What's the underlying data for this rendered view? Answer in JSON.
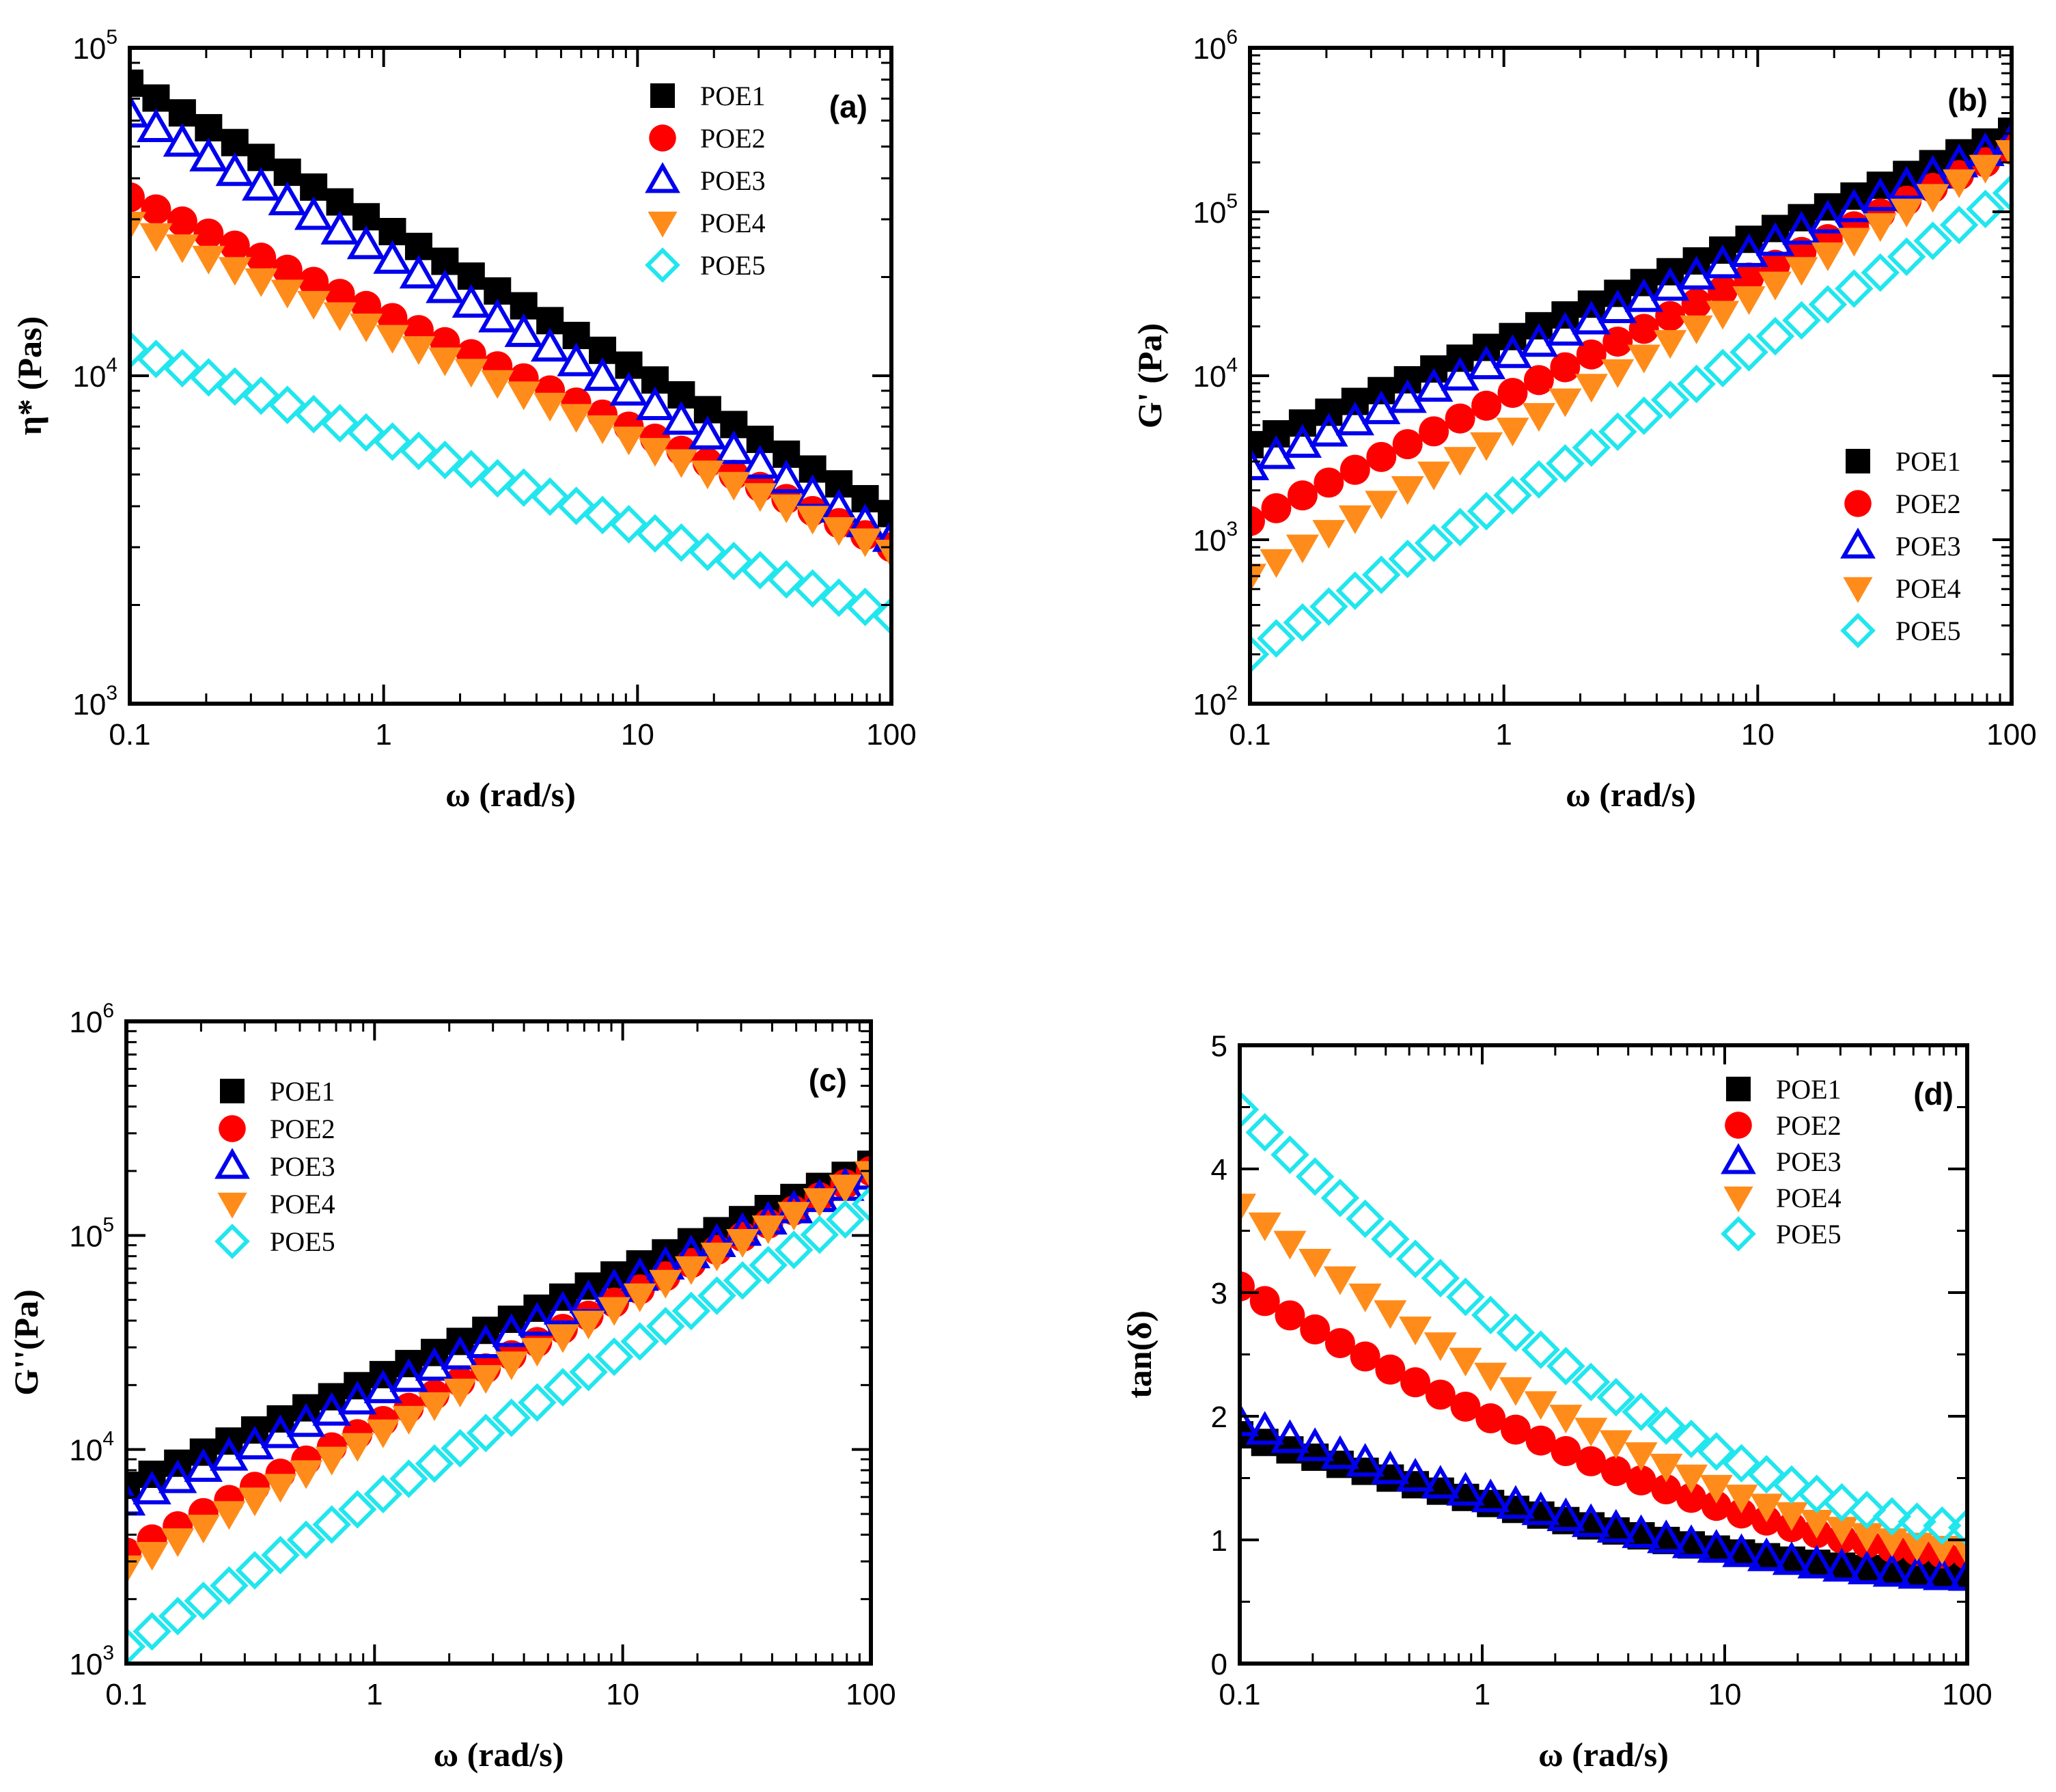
{
  "series_styles": [
    {
      "name": "POE1",
      "marker": "square",
      "filled": true,
      "color": "#000000"
    },
    {
      "name": "POE2",
      "marker": "circle",
      "filled": true,
      "color": "#ff0000"
    },
    {
      "name": "POE3",
      "marker": "triangle-up",
      "filled": false,
      "color": "#0000ee"
    },
    {
      "name": "POE4",
      "marker": "triangle-down",
      "filled": true,
      "color": "#ff8c1a"
    },
    {
      "name": "POE5",
      "marker": "diamond",
      "filled": false,
      "color": "#22e6ee"
    }
  ],
  "chart_data": [
    {
      "id": "a",
      "type": "scatter",
      "panel_label": "(a)",
      "xlabel": "ω (rad/s)",
      "ylabel": "η* (Pas)",
      "xscale": "log",
      "yscale": "log",
      "xlim": [
        0.1,
        100
      ],
      "ylim": [
        1000,
        100000
      ],
      "xticks": [
        "0.1",
        "1",
        "10",
        "100"
      ],
      "yticks": [
        {
          "base": "10",
          "exp": "3"
        },
        {
          "base": "10",
          "exp": "4"
        },
        {
          "base": "10",
          "exp": "5"
        }
      ],
      "legend_position": "top-right",
      "series": [
        {
          "name": "POE1",
          "start": 78000,
          "end": 3800
        },
        {
          "name": "POE2",
          "start": 35000,
          "end": 3000
        },
        {
          "name": "POE3",
          "start": 63000,
          "end": 3200
        },
        {
          "name": "POE4",
          "start": 29000,
          "end": 2900
        },
        {
          "name": "POE5",
          "start": 12000,
          "end": 1850
        }
      ]
    },
    {
      "id": "b",
      "type": "scatter",
      "panel_label": "(b)",
      "xlabel": "ω (rad/s)",
      "ylabel": "G' (Pa)",
      "xscale": "log",
      "yscale": "log",
      "xlim": [
        0.1,
        100
      ],
      "ylim": [
        100,
        1000000
      ],
      "xticks": [
        "0.1",
        "1",
        "10",
        "100"
      ],
      "yticks": [
        {
          "base": "10",
          "exp": "2"
        },
        {
          "base": "10",
          "exp": "3"
        },
        {
          "base": "10",
          "exp": "4"
        },
        {
          "base": "10",
          "exp": "5"
        },
        {
          "base": "10",
          "exp": "6"
        }
      ],
      "legend_position": "center-right",
      "series": [
        {
          "name": "POE1",
          "start": 3800,
          "end": 310000
        },
        {
          "name": "POE2",
          "start": 1300,
          "end": 240000
        },
        {
          "name": "POE3",
          "start": 2800,
          "end": 270000
        },
        {
          "name": "POE4",
          "start": 600,
          "end": 230000
        },
        {
          "name": "POE5",
          "start": 200,
          "end": 130000
        }
      ]
    },
    {
      "id": "c",
      "type": "scatter",
      "panel_label": "(c)",
      "xlabel": "ω (rad/s)",
      "ylabel": "G''(Pa)",
      "xscale": "log",
      "yscale": "log",
      "xlim": [
        0.1,
        100
      ],
      "ylim": [
        1000,
        1000000
      ],
      "xticks": [
        "0.1",
        "1",
        "10",
        "100"
      ],
      "yticks": [
        {
          "base": "10",
          "exp": "3"
        },
        {
          "base": "10",
          "exp": "4"
        },
        {
          "base": "10",
          "exp": "5"
        },
        {
          "base": "10",
          "exp": "6"
        }
      ],
      "legend_position": "top-left",
      "series": [
        {
          "name": "POE1",
          "start": 6800,
          "end": 215000
        },
        {
          "name": "POE2",
          "start": 3300,
          "end": 200000
        },
        {
          "name": "POE3",
          "start": 5700,
          "end": 190000
        },
        {
          "name": "POE4",
          "start": 2800,
          "end": 195000
        },
        {
          "name": "POE5",
          "start": 1200,
          "end": 140000
        }
      ]
    },
    {
      "id": "d",
      "type": "scatter",
      "panel_label": "(d)",
      "xlabel": "ω (rad/s)",
      "ylabel": "tan(δ)",
      "xscale": "log",
      "yscale": "linear",
      "xlim": [
        0.1,
        100
      ],
      "ylim": [
        0,
        5
      ],
      "xticks": [
        "0.1",
        "1",
        "10",
        "100"
      ],
      "yticks": [
        "0",
        "1",
        "2",
        "3",
        "4",
        "5"
      ],
      "legend_position": "top-right",
      "series": [
        {
          "name": "POE1",
          "start": 1.85,
          "end": 0.72
        },
        {
          "name": "POE2",
          "start": 3.05,
          "end": 0.88
        },
        {
          "name": "POE3",
          "start": 1.95,
          "end": 0.7
        },
        {
          "name": "POE4",
          "start": 3.7,
          "end": 0.92
        },
        {
          "name": "POE5",
          "start": 4.48,
          "end": 1.1
        }
      ]
    }
  ]
}
